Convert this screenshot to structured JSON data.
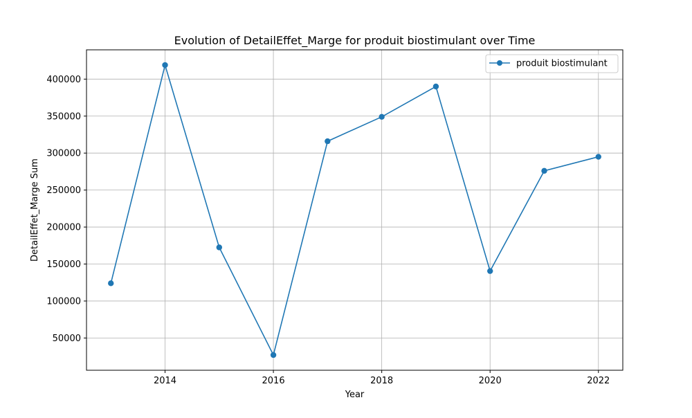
{
  "chart_data": {
    "type": "line",
    "title": "Evolution of DetailEffet_Marge for produit biostimulant over Time",
    "xlabel": "Year",
    "ylabel": "DetailEffet_Marge Sum",
    "x": [
      2013,
      2014,
      2015,
      2016,
      2017,
      2018,
      2019,
      2020,
      2021,
      2022
    ],
    "series": [
      {
        "name": "produit biostimulant",
        "values": [
          124000,
          419000,
          172500,
          27000,
          316000,
          349000,
          390000,
          140500,
          276000,
          295000
        ],
        "color": "#1f77b4",
        "marker": "circle"
      }
    ],
    "xlim": [
      2012.55,
      2022.45
    ],
    "ylim": [
      6400,
      439600
    ],
    "xticks": [
      2014,
      2016,
      2018,
      2020,
      2022
    ],
    "yticks": [
      50000,
      100000,
      150000,
      200000,
      250000,
      300000,
      350000,
      400000
    ],
    "grid": true,
    "legend_position": "top-right"
  }
}
